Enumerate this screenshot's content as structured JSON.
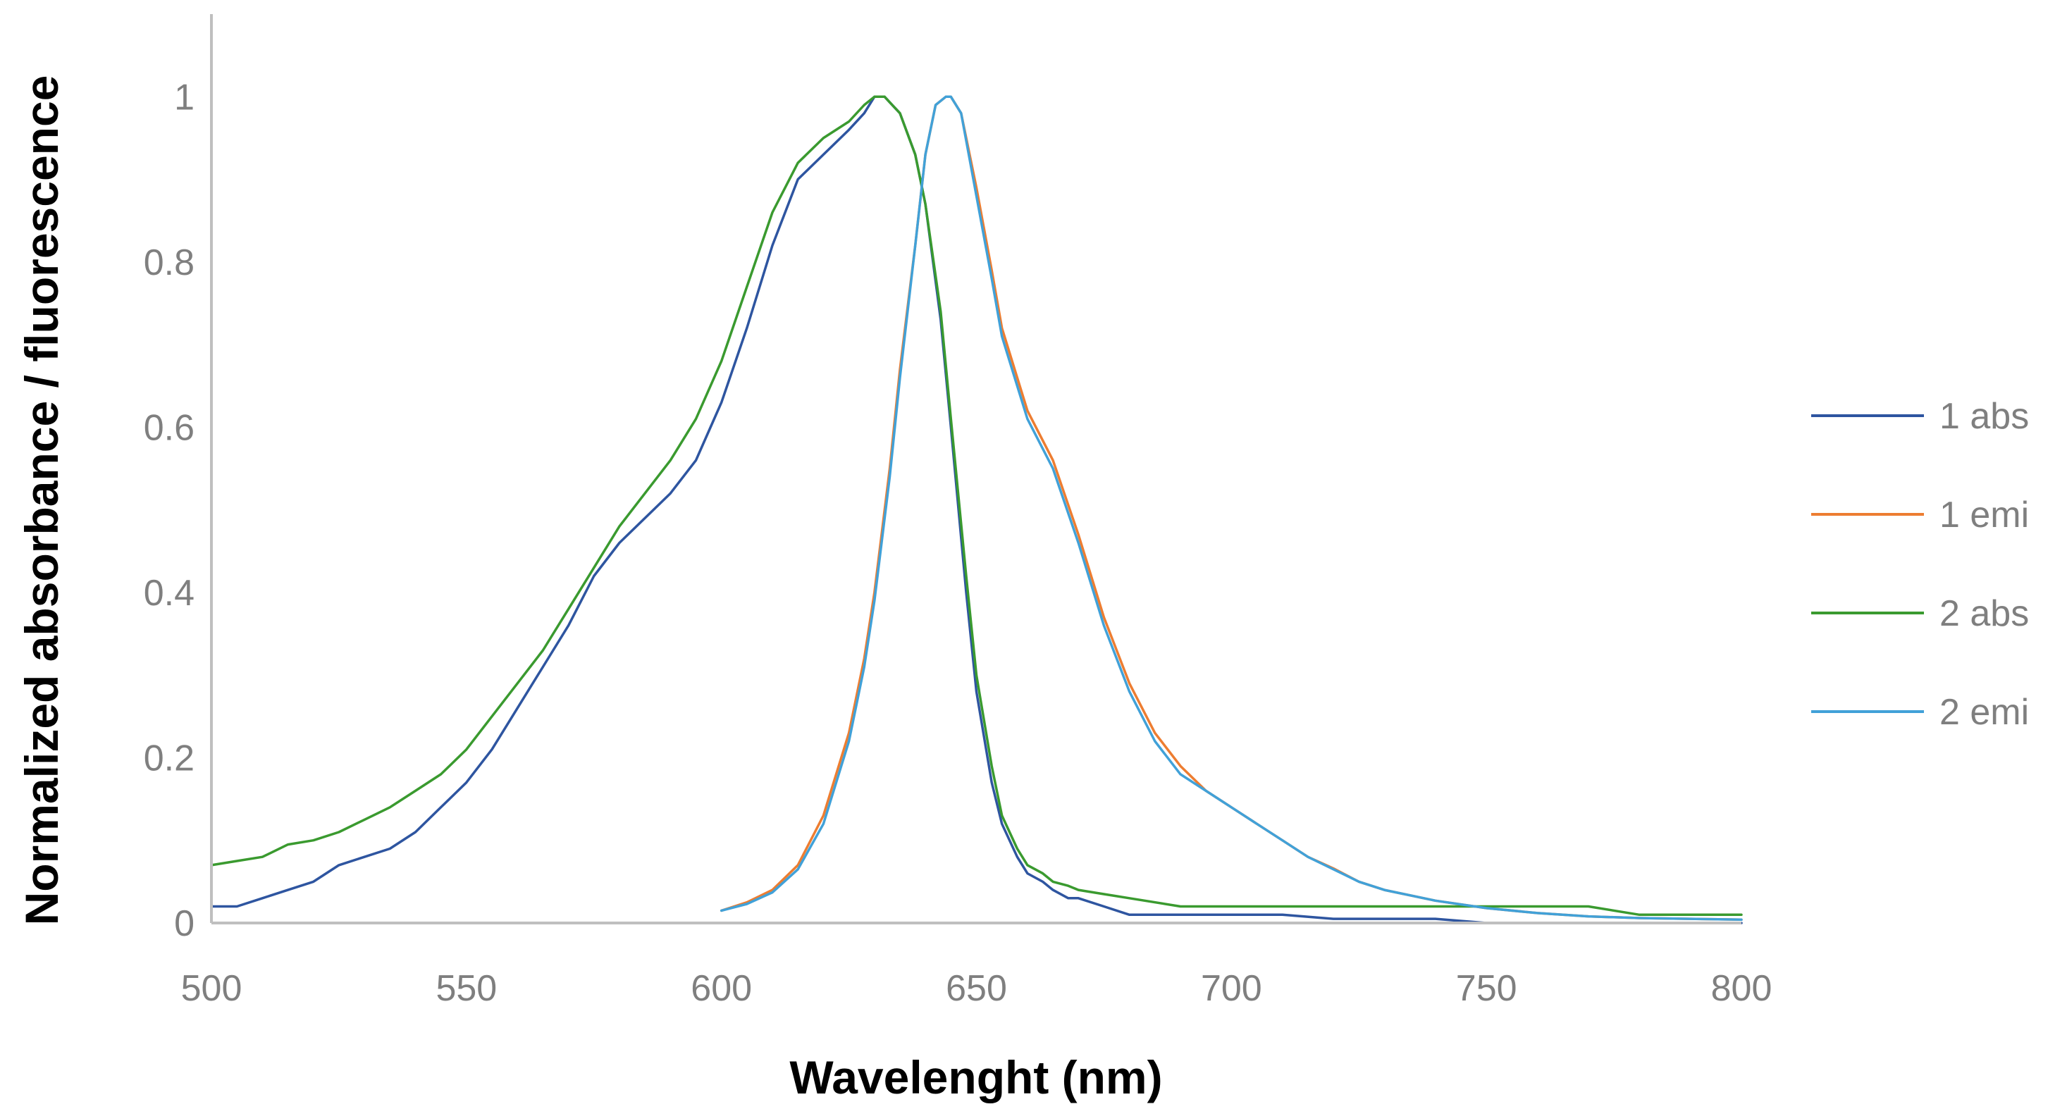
{
  "chart_data": {
    "type": "line",
    "title": "",
    "xlabel": "Wavelenght (nm)",
    "ylabel": "Normalized absorbance / fluorescence",
    "xlim": [
      500,
      800
    ],
    "ylim": [
      0,
      1.1
    ],
    "x_ticks": [
      500,
      550,
      600,
      650,
      700,
      750,
      800
    ],
    "y_ticks": [
      0,
      0.2,
      0.4,
      0.6,
      0.8,
      1
    ],
    "y_tick_labels": [
      "0",
      "0.2",
      "0.4",
      "0.6",
      "0.8",
      "1"
    ],
    "grid": false,
    "legend_position": "right",
    "series": [
      {
        "name": "1 abs",
        "color": "#2e55a0",
        "x": [
          500,
          505,
          510,
          515,
          520,
          525,
          530,
          535,
          540,
          545,
          550,
          555,
          560,
          565,
          570,
          575,
          580,
          585,
          590,
          595,
          600,
          605,
          610,
          615,
          620,
          625,
          628,
          630,
          632,
          635,
          638,
          640,
          643,
          645,
          648,
          650,
          653,
          655,
          658,
          660,
          663,
          665,
          668,
          670,
          675,
          680,
          690,
          700,
          710,
          720,
          730,
          740,
          750,
          760,
          770,
          780,
          790,
          800
        ],
        "y": [
          0.02,
          0.02,
          0.03,
          0.04,
          0.05,
          0.07,
          0.08,
          0.09,
          0.11,
          0.14,
          0.17,
          0.21,
          0.26,
          0.31,
          0.36,
          0.42,
          0.46,
          0.49,
          0.52,
          0.56,
          0.63,
          0.72,
          0.82,
          0.9,
          0.93,
          0.96,
          0.98,
          1.0,
          1.0,
          0.98,
          0.93,
          0.87,
          0.73,
          0.6,
          0.4,
          0.28,
          0.17,
          0.12,
          0.08,
          0.06,
          0.05,
          0.04,
          0.03,
          0.03,
          0.02,
          0.01,
          0.01,
          0.01,
          0.01,
          0.005,
          0.005,
          0.005,
          0.0,
          0.0,
          0.0,
          0.0,
          0.0,
          0.0
        ]
      },
      {
        "name": "1 emi",
        "color": "#ed7d31",
        "x": [
          600,
          605,
          610,
          615,
          620,
          625,
          628,
          630,
          633,
          635,
          638,
          640,
          642,
          644,
          645,
          647,
          650,
          653,
          655,
          658,
          660,
          665,
          670,
          675,
          680,
          685,
          690,
          695,
          700,
          705,
          710,
          715,
          720,
          725,
          730,
          740,
          750,
          760,
          770,
          780,
          790,
          800
        ],
        "y": [
          0.015,
          0.025,
          0.04,
          0.07,
          0.13,
          0.23,
          0.32,
          0.4,
          0.55,
          0.67,
          0.82,
          0.93,
          0.99,
          1.0,
          1.0,
          0.98,
          0.89,
          0.79,
          0.72,
          0.66,
          0.62,
          0.56,
          0.47,
          0.37,
          0.29,
          0.23,
          0.19,
          0.16,
          0.14,
          0.12,
          0.1,
          0.08,
          0.066,
          0.05,
          0.04,
          0.027,
          0.018,
          0.012,
          0.008,
          0.006,
          0.005,
          0.004
        ]
      },
      {
        "name": "2 abs",
        "color": "#3a9a2f",
        "x": [
          500,
          505,
          510,
          515,
          520,
          525,
          530,
          535,
          540,
          545,
          550,
          555,
          560,
          565,
          570,
          575,
          580,
          585,
          590,
          595,
          600,
          605,
          610,
          615,
          620,
          625,
          628,
          630,
          632,
          635,
          638,
          640,
          643,
          645,
          648,
          650,
          653,
          655,
          658,
          660,
          663,
          665,
          668,
          670,
          675,
          680,
          690,
          700,
          710,
          720,
          730,
          740,
          750,
          760,
          770,
          780,
          790,
          800
        ],
        "y": [
          0.07,
          0.075,
          0.08,
          0.095,
          0.1,
          0.11,
          0.125,
          0.14,
          0.16,
          0.18,
          0.21,
          0.25,
          0.29,
          0.33,
          0.38,
          0.43,
          0.48,
          0.52,
          0.56,
          0.61,
          0.68,
          0.77,
          0.86,
          0.92,
          0.95,
          0.97,
          0.99,
          1.0,
          1.0,
          0.98,
          0.93,
          0.87,
          0.74,
          0.61,
          0.42,
          0.3,
          0.19,
          0.13,
          0.09,
          0.07,
          0.06,
          0.05,
          0.045,
          0.04,
          0.035,
          0.03,
          0.02,
          0.02,
          0.02,
          0.02,
          0.02,
          0.02,
          0.02,
          0.02,
          0.02,
          0.01,
          0.01,
          0.01
        ]
      },
      {
        "name": "2 emi",
        "color": "#41a1d8",
        "x": [
          600,
          605,
          610,
          615,
          620,
          625,
          628,
          630,
          633,
          635,
          638,
          640,
          642,
          644,
          645,
          647,
          650,
          653,
          655,
          658,
          660,
          665,
          670,
          675,
          680,
          685,
          690,
          695,
          700,
          705,
          710,
          715,
          720,
          725,
          730,
          740,
          750,
          760,
          770,
          780,
          790,
          800
        ],
        "y": [
          0.015,
          0.023,
          0.037,
          0.065,
          0.12,
          0.22,
          0.31,
          0.39,
          0.54,
          0.66,
          0.82,
          0.93,
          0.99,
          1.0,
          1.0,
          0.98,
          0.88,
          0.78,
          0.71,
          0.65,
          0.61,
          0.55,
          0.46,
          0.36,
          0.28,
          0.22,
          0.18,
          0.16,
          0.14,
          0.12,
          0.1,
          0.08,
          0.065,
          0.05,
          0.04,
          0.027,
          0.018,
          0.012,
          0.008,
          0.006,
          0.005,
          0.004
        ]
      }
    ]
  }
}
